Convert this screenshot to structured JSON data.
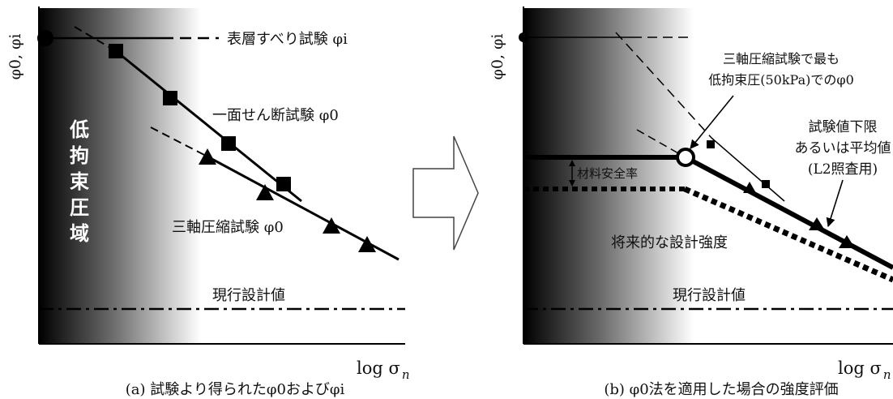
{
  "axis": {
    "y_label": "φ0, φi",
    "x_label_main": "log σ",
    "x_label_sub": "n"
  },
  "panel_a": {
    "caption": "(a) 試験より得られたφ0およびφi",
    "region_chars": [
      "低",
      "拘",
      "束",
      "圧",
      "域"
    ],
    "surface_label": "表層すべり試験 φi",
    "direct_shear_label": "一面せん断試験 φ0",
    "triaxial_label": "三軸圧縮試験 φ0",
    "current_label": "現行設計値"
  },
  "panel_b": {
    "caption": "(b) φ0法を適用した場合の強度評価",
    "annot_line1": "三軸圧縮試験で最も",
    "annot_line2": "低拘束圧(50kPa)でのφ0",
    "lower_line1": "試験値下限",
    "lower_line2": "あるいは平均値",
    "lower_line3": "(L2照査用)",
    "safety_label": "材料安全率",
    "future_label": "将来的な設計強度",
    "current_label": "現行設計値"
  }
}
